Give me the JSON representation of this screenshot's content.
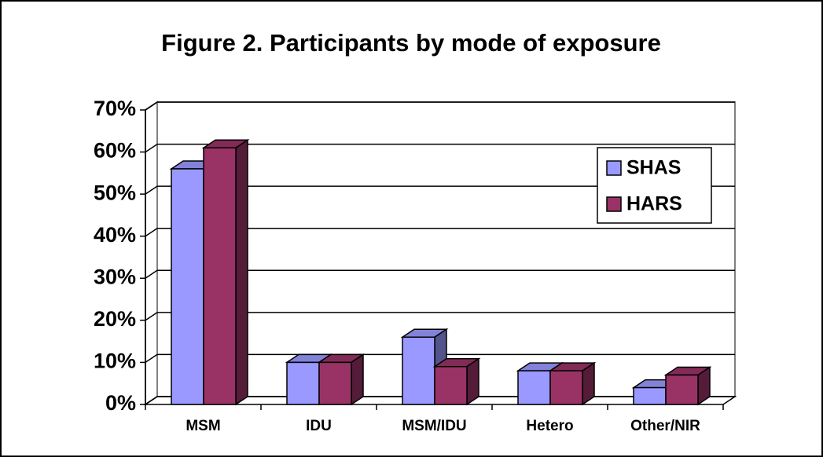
{
  "chart_data": {
    "type": "bar3d",
    "title": "Figure 2. Participants by mode of exposure",
    "categories": [
      "MSM",
      "IDU",
      "MSM/IDU",
      "Hetero",
      "Other/NIR"
    ],
    "series": [
      {
        "name": "SHAS",
        "color": "#9999ff",
        "values": [
          56,
          10,
          16,
          8,
          4
        ]
      },
      {
        "name": "HARS",
        "color": "#993366",
        "values": [
          61,
          10,
          9,
          8,
          7
        ]
      }
    ],
    "ylim": [
      0,
      70
    ],
    "yticks": [
      {
        "value": 0,
        "label": "0%"
      },
      {
        "value": 10,
        "label": "10%"
      },
      {
        "value": 20,
        "label": "20%"
      },
      {
        "value": 30,
        "label": "30%"
      },
      {
        "value": 40,
        "label": "40%"
      },
      {
        "value": 50,
        "label": "50%"
      },
      {
        "value": 60,
        "label": "60%"
      },
      {
        "value": 70,
        "label": "70%"
      }
    ],
    "grid": true,
    "legend": "right"
  }
}
